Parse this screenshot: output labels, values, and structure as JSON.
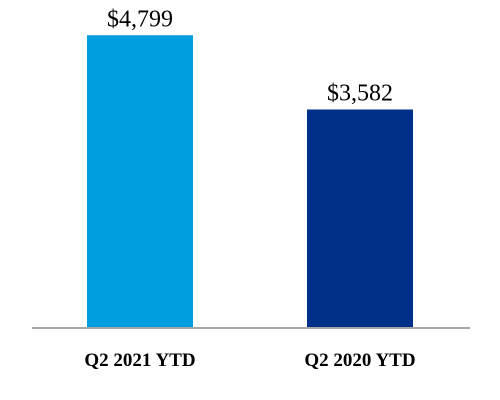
{
  "chart_data": {
    "type": "bar",
    "categories": [
      "Q2 2021 YTD",
      "Q2 2020 YTD"
    ],
    "values": [
      4799,
      3582
    ],
    "data_labels": [
      "$4,799",
      "$3,582"
    ],
    "colors": [
      "#009ddf",
      "#003087"
    ],
    "axis_color": "#a6a6a6",
    "title": "",
    "xlabel": "",
    "ylabel": "",
    "ylim": [
      0,
      5000
    ],
    "grid": false,
    "legend": "none"
  }
}
